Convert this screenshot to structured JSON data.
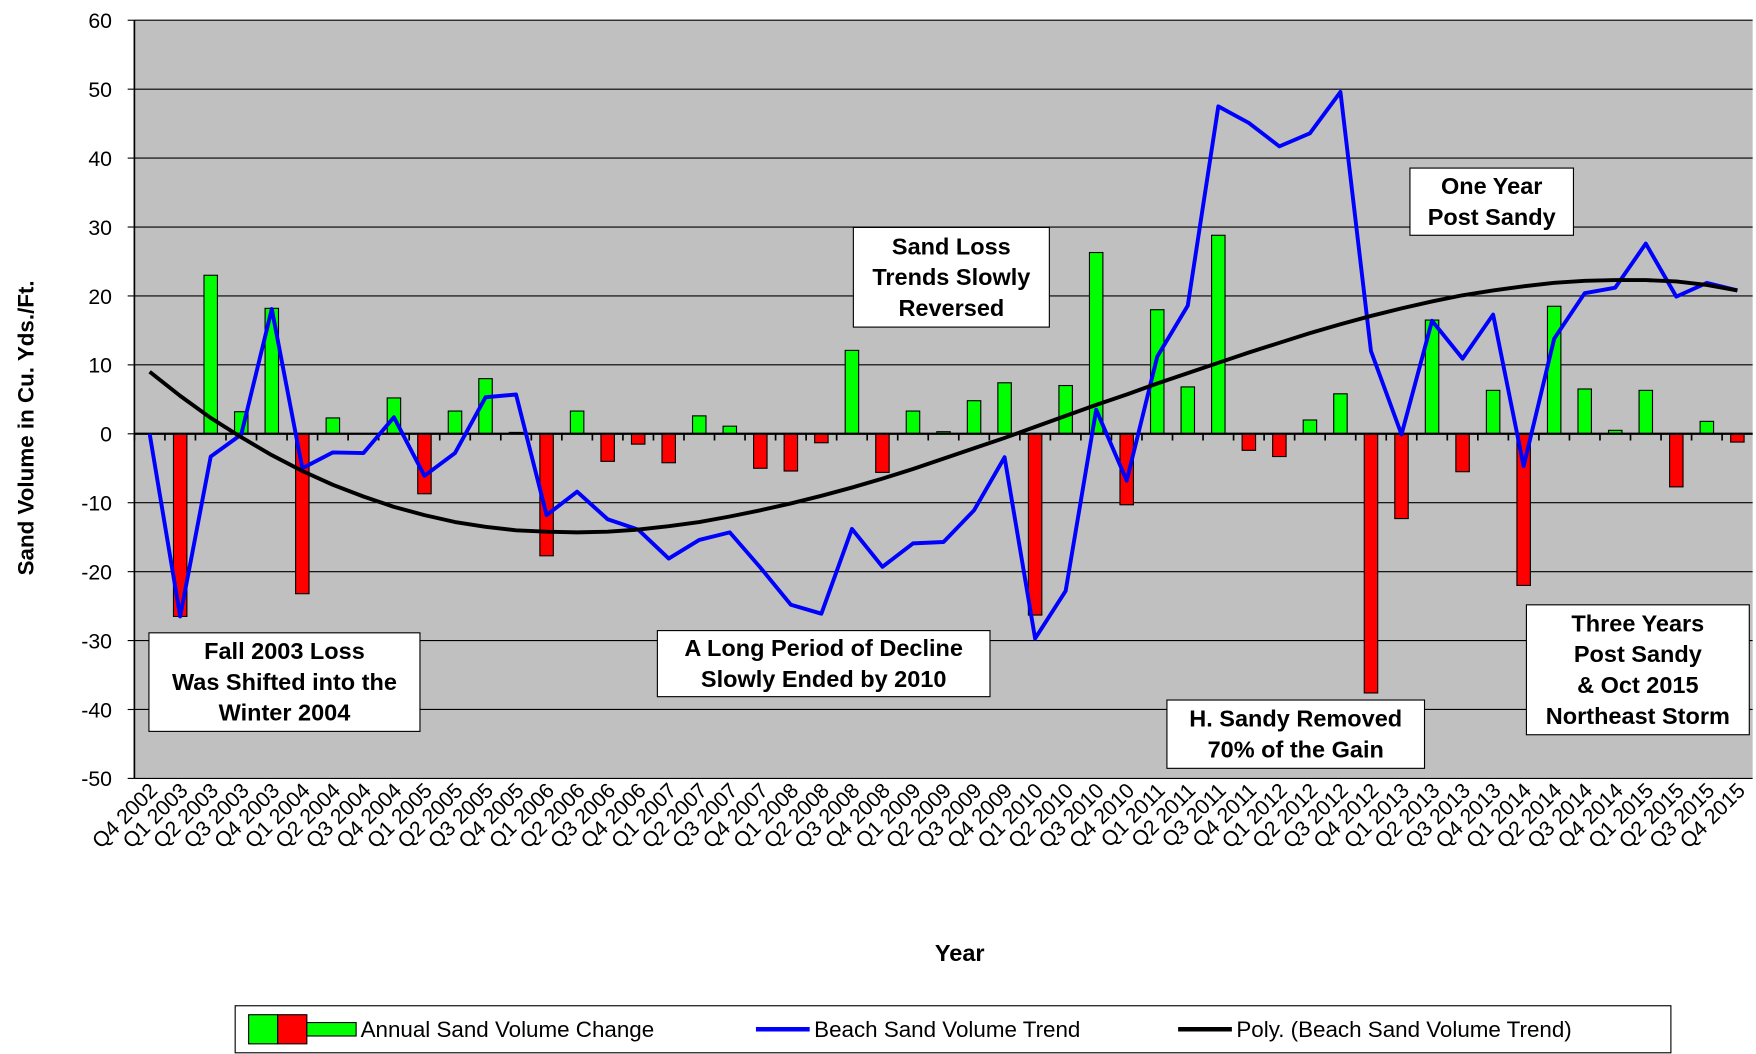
{
  "chart_data": {
    "type": "bar_line",
    "x_label": "Year",
    "y_label": "Sand Volume in Cu. Yds./Ft.",
    "categories": [
      "Q4 2002",
      "Q1 2003",
      "Q2 2003",
      "Q3 2003",
      "Q4 2003",
      "Q1 2004",
      "Q2 2004",
      "Q3 2004",
      "Q4 2004",
      "Q1 2005",
      "Q2 2005",
      "Q3 2005",
      "Q4 2005",
      "Q1 2006",
      "Q2 2006",
      "Q3 2006",
      "Q4 2006",
      "Q1 2007",
      "Q2 2007",
      "Q3 2007",
      "Q4 2007",
      "Q1 2008",
      "Q2 2008",
      "Q3 2008",
      "Q4 2008",
      "Q1 2009",
      "Q2 2009",
      "Q3 2009",
      "Q4 2009",
      "Q1 2010",
      "Q2 2010",
      "Q3 2010",
      "Q4 2010",
      "Q1 2011",
      "Q2 2011",
      "Q3 2011",
      "Q4 2011",
      "Q1 2012",
      "Q2 2012",
      "Q3 2012",
      "Q4 2012",
      "Q1 2013",
      "Q2 2013",
      "Q3 2013",
      "Q4 2013",
      "Q1 2014",
      "Q2 2014",
      "Q3 2014",
      "Q4 2014",
      "Q1 2015",
      "Q2 2015",
      "Q3 2015",
      "Q4 2015"
    ],
    "series": [
      {
        "name": "Annual Sand Volume Change",
        "type": "bar",
        "color": "#00ff00",
        "negative_color": "#ff0000",
        "values": [
          0,
          -26.5,
          23,
          3.2,
          18.2,
          -23.2,
          2.3,
          0,
          5.2,
          -8.7,
          3.3,
          8,
          0.2,
          -17.7,
          3.3,
          -4,
          -1.5,
          -4.2,
          2.6,
          1.1,
          -5,
          -5.4,
          -1.3,
          12.1,
          -5.6,
          3.3,
          0.3,
          4.8,
          7.4,
          -26.3,
          7,
          26.3,
          -10.3,
          18,
          6.8,
          28.8,
          -2.4,
          -3.3,
          2,
          5.8,
          -37.6,
          -12.3,
          16.5,
          -5.5,
          6.3,
          -22,
          18.5,
          6.5,
          0.5,
          6.3,
          -7.7,
          1.8,
          -1.2
        ]
      },
      {
        "name": "Beach Sand Volume Trend",
        "type": "line",
        "color": "#0000ff",
        "values": [
          0,
          -26.5,
          -3.3,
          -0.1,
          18.1,
          -5,
          -2.7,
          -2.8,
          2.4,
          -6.1,
          -2.8,
          5.3,
          5.7,
          -11.8,
          -8.4,
          -12.4,
          -13.9,
          -18.1,
          -15.4,
          -14.3,
          -19.4,
          -24.8,
          -26.1,
          -13.8,
          -19.3,
          -15.9,
          -15.7,
          -11.1,
          -3.4,
          -29.7,
          -22.8,
          3.5,
          -6.8,
          11.2,
          18.6,
          47.5,
          45.1,
          41.7,
          43.6,
          49.6,
          12,
          -0.1,
          16.4,
          10.9,
          17.3,
          -4.7,
          13.8,
          20.4,
          21.2,
          27.6,
          19.9,
          21.9,
          20.8
        ]
      },
      {
        "name": "Poly. (Beach Sand Volume Trend)",
        "type": "line",
        "color": "#000000",
        "values": [
          9,
          5.5,
          2.3,
          -0.5,
          -3.1,
          -5.4,
          -7.4,
          -9.1,
          -10.6,
          -11.8,
          -12.8,
          -13.5,
          -14,
          -14.2,
          -14.3,
          -14.2,
          -13.9,
          -13.4,
          -12.8,
          -12,
          -11.1,
          -10.1,
          -9,
          -7.8,
          -6.5,
          -5.1,
          -3.6,
          -2.1,
          -0.6,
          1,
          2.6,
          4.2,
          5.7,
          7.3,
          8.8,
          10.3,
          11.8,
          13.2,
          14.6,
          15.9,
          17.1,
          18.2,
          19.2,
          20.1,
          20.8,
          21.4,
          21.9,
          22.2,
          22.3,
          22.3,
          22.1,
          21.6,
          20.8
        ]
      }
    ],
    "ylim": [
      -50,
      60
    ],
    "yticks": [
      -50,
      -40,
      -30,
      -20,
      -10,
      0,
      10,
      20,
      30,
      40,
      50,
      60
    ],
    "grid": true,
    "plot_background": "#c0c0c0",
    "legend": "bottom",
    "annotations": [
      {
        "lines": [
          "Fall 2003 Loss",
          "Was Shifted into the",
          "Winter 2004"
        ]
      },
      {
        "lines": [
          "A Long Period of Decline",
          "Slowly  Ended by 2010"
        ]
      },
      {
        "lines": [
          "Sand Loss",
          "Trends Slowly",
          "Reversed"
        ]
      },
      {
        "lines": [
          "One Year",
          "Post Sandy"
        ]
      },
      {
        "lines": [
          "H. Sandy Removed",
          "70% of the Gain"
        ]
      },
      {
        "lines": [
          "Three Years",
          "Post Sandy",
          "& Oct 2015",
          "Northeast Storm"
        ]
      }
    ]
  }
}
